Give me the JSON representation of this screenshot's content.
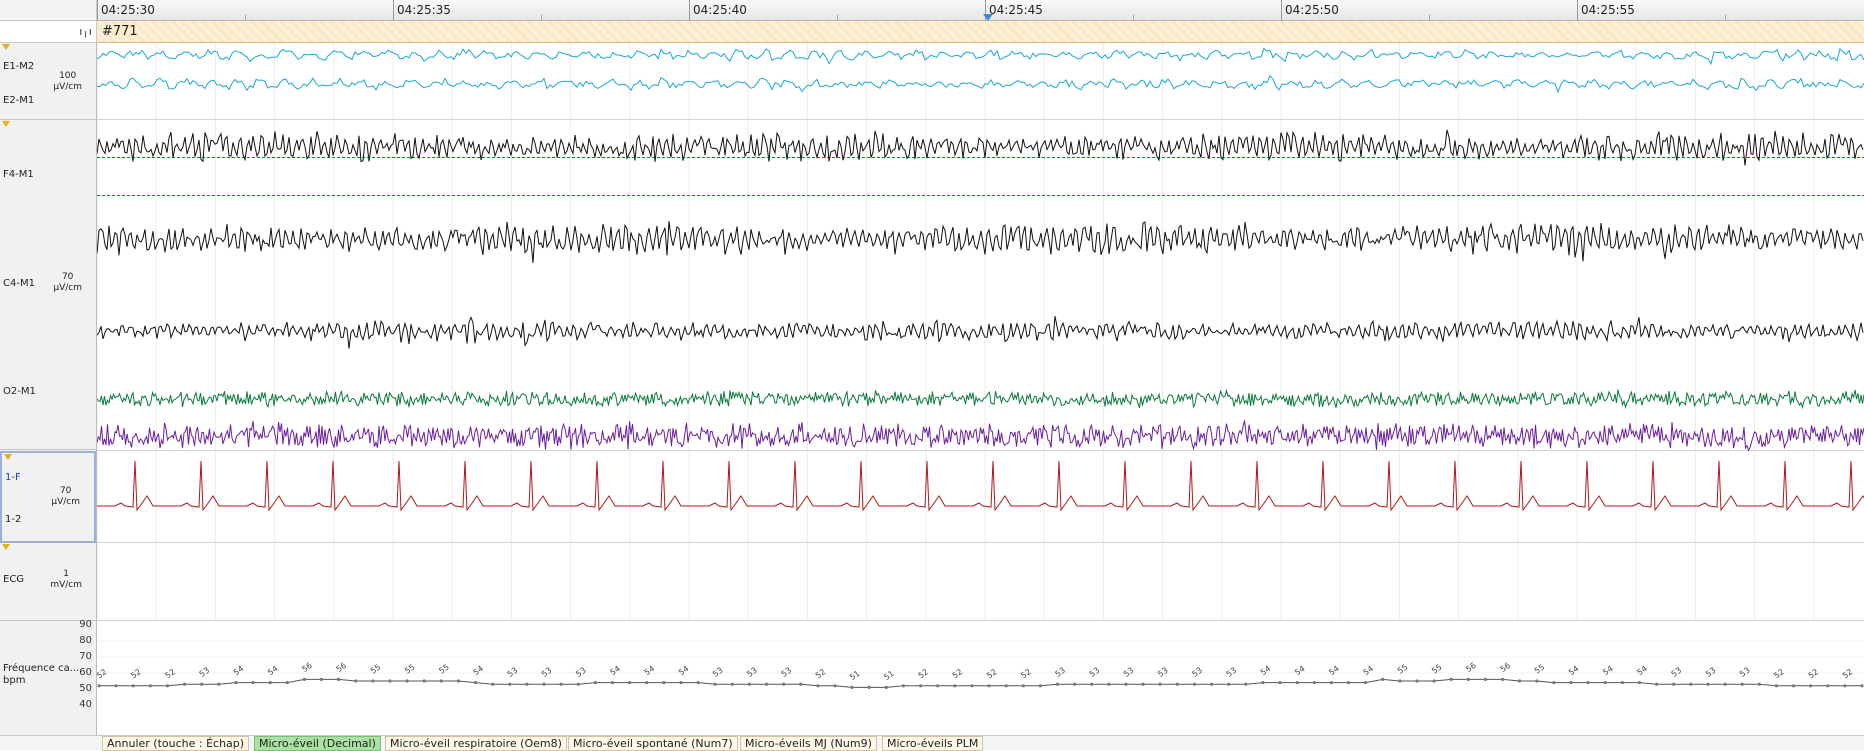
{
  "timeline": {
    "ticks": [
      "04:25:30",
      "04:25:35",
      "04:25:40",
      "04:25:45",
      "04:25:50",
      "04:25:55"
    ],
    "cursor_time": "04:25:45"
  },
  "toolbar": {
    "icon": "waveform-icon",
    "icon_glyph": "ı╷ı"
  },
  "event": {
    "label": "#771"
  },
  "channels": {
    "eog": {
      "e1": "E1-M2",
      "e2": "E2-M1",
      "scale_value": "100",
      "scale_unit": "µV/cm",
      "color": "#1aa7d9"
    },
    "eeg": {
      "f4": "F4-M1",
      "c4": "C4-M1",
      "o2": "O2-M1",
      "scale_value": "70",
      "scale_unit": "µV/cm",
      "color": "#111111",
      "threshold_color": "#e02020"
    },
    "emg": {
      "ch1": "1-F",
      "ch2": "1-2",
      "scale_value": "70",
      "scale_unit": "µV/cm",
      "color1": "#0c7a3c",
      "color2": "#6a1fa0"
    },
    "ecg": {
      "name": "ECG",
      "scale_value": "1",
      "scale_unit": "mV/cm",
      "color": "#b01818"
    },
    "hr": {
      "name": "Fréquence ca...",
      "unit": "bpm",
      "axis_ticks": [
        "90",
        "80",
        "70",
        "60",
        "50",
        "40"
      ],
      "color": "#555555"
    }
  },
  "hr_values": [
    "52",
    "52",
    "52",
    "52",
    "52",
    "53",
    "53",
    "53",
    "54",
    "54",
    "54",
    "54",
    "56",
    "56",
    "56",
    "55",
    "55",
    "55",
    "55",
    "55",
    "55",
    "55",
    "54",
    "53",
    "53",
    "53",
    "53",
    "53",
    "53",
    "54",
    "54",
    "54",
    "54",
    "54",
    "54",
    "54",
    "53",
    "53",
    "53",
    "53",
    "53",
    "53",
    "52",
    "52",
    "51",
    "51",
    "51",
    "52",
    "52",
    "52",
    "52",
    "52",
    "52",
    "52",
    "52",
    "52",
    "53",
    "53",
    "53",
    "53",
    "53",
    "53",
    "53",
    "53",
    "53",
    "53",
    "53",
    "53",
    "54",
    "54",
    "54",
    "54",
    "54",
    "54",
    "54",
    "56",
    "55",
    "55",
    "55",
    "56",
    "56",
    "56",
    "56",
    "55",
    "55",
    "54",
    "54",
    "54",
    "54",
    "54",
    "54",
    "53",
    "53",
    "53",
    "53",
    "53",
    "53",
    "53",
    "52",
    "52",
    "52",
    "52",
    "52",
    "52"
  ],
  "annotation_buttons": [
    {
      "label": "Annuler (touche : Échap)",
      "active": false
    },
    {
      "label": "Micro-éveil (Decimal)",
      "active": true
    },
    {
      "label": "Micro-éveil respiratoire (Oem8)",
      "active": false
    },
    {
      "label": "Micro-éveil spontané (Num7)",
      "active": false
    },
    {
      "label": "Micro-éveils MJ (Num9)",
      "active": false
    },
    {
      "label": "Micro-éveils PLM",
      "active": false
    }
  ]
}
